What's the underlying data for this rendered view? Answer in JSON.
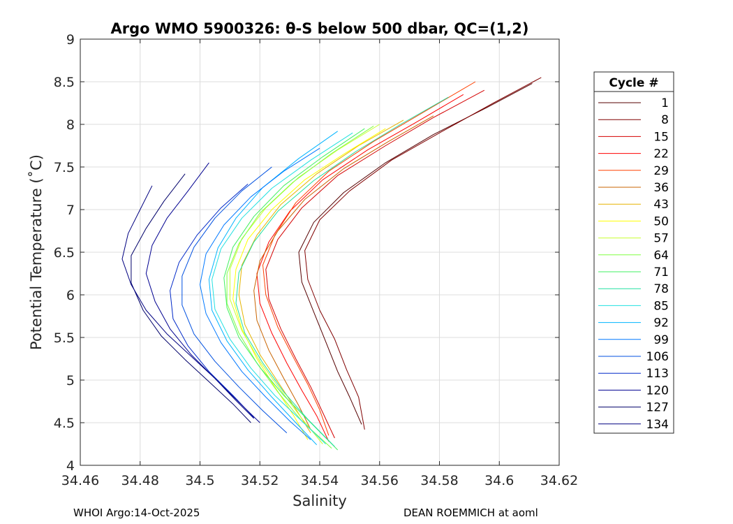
{
  "chart_data": {
    "type": "line",
    "title": "Argo WMO 5900326: θ-S below 500 dbar,  QC=(1,2)",
    "xlabel": "Salinity",
    "ylabel": "Potential Temperature (˚C)",
    "xlim": [
      34.46,
      34.62
    ],
    "ylim": [
      4,
      9
    ],
    "xticks": [
      "34.46",
      "34.48",
      "34.5",
      "34.52",
      "34.54",
      "34.56",
      "34.58",
      "34.6",
      "34.62"
    ],
    "yticks": [
      "4",
      "4.5",
      "5",
      "5.5",
      "6",
      "6.5",
      "7",
      "7.5",
      "8",
      "8.5",
      "9"
    ],
    "grid": true,
    "legend": {
      "title": "Cycle #",
      "placement": "right-outside",
      "entries": [
        "1",
        "8",
        "15",
        "22",
        "29",
        "36",
        "43",
        "50",
        "57",
        "64",
        "71",
        "78",
        "85",
        "92",
        "99",
        "106",
        "113",
        "120",
        "127",
        "134"
      ]
    },
    "colors": [
      "#550000",
      "#800000",
      "#d40000",
      "#ff0000",
      "#ff4000",
      "#c86400",
      "#e6b400",
      "#ffff00",
      "#c8ff30",
      "#80ff40",
      "#40f060",
      "#20e0a0",
      "#20e0e0",
      "#00b4ff",
      "#0078ff",
      "#0050e0",
      "#0028c8",
      "#000090",
      "#00006a",
      "#000080"
    ],
    "series": [
      {
        "name": "1",
        "points": [
          [
            34.611,
            8.48
          ],
          [
            34.596,
            8.2
          ],
          [
            34.578,
            7.88
          ],
          [
            34.562,
            7.55
          ],
          [
            34.548,
            7.2
          ],
          [
            34.538,
            6.85
          ],
          [
            34.533,
            6.5
          ],
          [
            34.534,
            6.15
          ],
          [
            34.538,
            5.8
          ],
          [
            34.542,
            5.45
          ],
          [
            34.546,
            5.1
          ],
          [
            34.55,
            4.8
          ],
          [
            34.554,
            4.48
          ]
        ]
      },
      {
        "name": "8",
        "points": [
          [
            34.614,
            8.55
          ],
          [
            34.598,
            8.25
          ],
          [
            34.581,
            7.92
          ],
          [
            34.564,
            7.58
          ],
          [
            34.55,
            7.22
          ],
          [
            34.54,
            6.88
          ],
          [
            34.535,
            6.52
          ],
          [
            34.536,
            6.18
          ],
          [
            34.54,
            5.82
          ],
          [
            34.545,
            5.48
          ],
          [
            34.549,
            5.12
          ],
          [
            34.553,
            4.8
          ],
          [
            34.555,
            4.42
          ]
        ]
      },
      {
        "name": "15",
        "points": [
          [
            34.595,
            8.4
          ],
          [
            34.578,
            8.08
          ],
          [
            34.562,
            7.75
          ],
          [
            34.546,
            7.4
          ],
          [
            34.534,
            7.02
          ],
          [
            34.526,
            6.65
          ],
          [
            34.522,
            6.3
          ],
          [
            34.523,
            5.95
          ],
          [
            34.527,
            5.6
          ],
          [
            34.532,
            5.25
          ],
          [
            34.537,
            4.92
          ],
          [
            34.541,
            4.62
          ],
          [
            34.545,
            4.32
          ]
        ]
      },
      {
        "name": "22",
        "points": [
          [
            34.588,
            8.35
          ],
          [
            34.572,
            8.02
          ],
          [
            34.556,
            7.7
          ],
          [
            34.541,
            7.35
          ],
          [
            34.53,
            6.98
          ],
          [
            34.523,
            6.62
          ],
          [
            34.519,
            6.25
          ],
          [
            34.52,
            5.9
          ],
          [
            34.524,
            5.55
          ],
          [
            34.529,
            5.2
          ],
          [
            34.534,
            4.88
          ],
          [
            34.539,
            4.58
          ],
          [
            34.543,
            4.28
          ]
        ]
      },
      {
        "name": "29",
        "points": [
          [
            34.592,
            8.5
          ],
          [
            34.575,
            8.15
          ],
          [
            34.558,
            7.8
          ],
          [
            34.543,
            7.45
          ],
          [
            34.532,
            7.08
          ],
          [
            34.525,
            6.7
          ],
          [
            34.521,
            6.35
          ],
          [
            34.522,
            6.0
          ],
          [
            34.526,
            5.62
          ],
          [
            34.531,
            5.28
          ],
          [
            34.536,
            4.95
          ],
          [
            34.54,
            4.65
          ],
          [
            34.543,
            4.35
          ]
        ]
      },
      {
        "name": "36",
        "points": [
          [
            34.578,
            8.1
          ],
          [
            34.563,
            7.8
          ],
          [
            34.548,
            7.48
          ],
          [
            34.535,
            7.12
          ],
          [
            34.526,
            6.75
          ],
          [
            34.52,
            6.4
          ],
          [
            34.518,
            6.05
          ],
          [
            34.519,
            5.7
          ],
          [
            34.523,
            5.35
          ],
          [
            34.528,
            5.02
          ],
          [
            34.533,
            4.7
          ],
          [
            34.537,
            4.42
          ]
        ]
      },
      {
        "name": "43",
        "points": [
          [
            34.568,
            8.05
          ],
          [
            34.553,
            7.75
          ],
          [
            34.539,
            7.42
          ],
          [
            34.527,
            7.06
          ],
          [
            34.519,
            6.7
          ],
          [
            34.514,
            6.35
          ],
          [
            34.513,
            6.0
          ],
          [
            34.515,
            5.65
          ],
          [
            34.52,
            5.3
          ],
          [
            34.526,
            4.98
          ],
          [
            34.532,
            4.66
          ],
          [
            34.537,
            4.38
          ]
        ]
      },
      {
        "name": "50",
        "points": [
          [
            34.562,
            7.95
          ],
          [
            34.548,
            7.65
          ],
          [
            34.535,
            7.35
          ],
          [
            34.524,
            7.0
          ],
          [
            34.516,
            6.65
          ],
          [
            34.512,
            6.3
          ],
          [
            34.511,
            5.95
          ],
          [
            34.514,
            5.6
          ],
          [
            34.519,
            5.25
          ],
          [
            34.525,
            4.92
          ],
          [
            34.531,
            4.6
          ],
          [
            34.536,
            4.3
          ]
        ]
      },
      {
        "name": "57",
        "points": [
          [
            34.56,
            8.0
          ],
          [
            34.546,
            7.7
          ],
          [
            34.533,
            7.38
          ],
          [
            34.522,
            7.02
          ],
          [
            34.514,
            6.66
          ],
          [
            34.51,
            6.3
          ],
          [
            34.51,
            5.95
          ],
          [
            34.514,
            5.58
          ],
          [
            34.52,
            5.22
          ],
          [
            34.527,
            4.88
          ],
          [
            34.534,
            4.55
          ],
          [
            34.541,
            4.25
          ]
        ]
      },
      {
        "name": "64",
        "points": [
          [
            34.558,
            7.98
          ],
          [
            34.544,
            7.66
          ],
          [
            34.531,
            7.32
          ],
          [
            34.52,
            6.96
          ],
          [
            34.513,
            6.6
          ],
          [
            34.509,
            6.25
          ],
          [
            34.509,
            5.9
          ],
          [
            34.513,
            5.55
          ],
          [
            34.519,
            5.2
          ],
          [
            34.526,
            4.86
          ],
          [
            34.534,
            4.52
          ],
          [
            34.544,
            4.2
          ]
        ]
      },
      {
        "name": "71",
        "points": [
          [
            34.555,
            7.95
          ],
          [
            34.541,
            7.62
          ],
          [
            34.528,
            7.28
          ],
          [
            34.518,
            6.92
          ],
          [
            34.511,
            6.56
          ],
          [
            34.508,
            6.2
          ],
          [
            34.509,
            5.85
          ],
          [
            34.513,
            5.5
          ],
          [
            34.52,
            5.15
          ],
          [
            34.528,
            4.82
          ],
          [
            34.537,
            4.5
          ],
          [
            34.546,
            4.18
          ]
        ]
      },
      {
        "name": "78",
        "points": [
          [
            34.583,
            8.32
          ],
          [
            34.567,
            8.0
          ],
          [
            34.552,
            7.68
          ],
          [
            34.538,
            7.34
          ],
          [
            34.526,
            6.98
          ],
          [
            34.518,
            6.62
          ],
          [
            34.513,
            6.26
          ],
          [
            34.512,
            5.9
          ],
          [
            34.515,
            5.55
          ],
          [
            34.521,
            5.2
          ],
          [
            34.528,
            4.86
          ],
          [
            34.536,
            4.54
          ],
          [
            34.545,
            4.22
          ]
        ]
      },
      {
        "name": "85",
        "points": [
          [
            34.551,
            7.9
          ],
          [
            34.537,
            7.58
          ],
          [
            34.524,
            7.25
          ],
          [
            34.514,
            6.9
          ],
          [
            34.507,
            6.54
          ],
          [
            34.504,
            6.18
          ],
          [
            34.505,
            5.83
          ],
          [
            34.51,
            5.48
          ],
          [
            34.517,
            5.14
          ],
          [
            34.525,
            4.82
          ],
          [
            34.534,
            4.52
          ],
          [
            34.542,
            4.25
          ]
        ]
      },
      {
        "name": "92",
        "points": [
          [
            34.546,
            7.92
          ],
          [
            34.533,
            7.6
          ],
          [
            34.521,
            7.26
          ],
          [
            34.512,
            6.9
          ],
          [
            34.506,
            6.55
          ],
          [
            34.503,
            6.18
          ],
          [
            34.504,
            5.82
          ],
          [
            34.509,
            5.46
          ],
          [
            34.516,
            5.12
          ],
          [
            34.524,
            4.8
          ],
          [
            34.532,
            4.5
          ],
          [
            34.539,
            4.24
          ]
        ]
      },
      {
        "name": "99",
        "points": [
          [
            34.54,
            7.72
          ],
          [
            34.528,
            7.45
          ],
          [
            34.517,
            7.15
          ],
          [
            34.508,
            6.82
          ],
          [
            34.502,
            6.48
          ],
          [
            34.5,
            6.12
          ],
          [
            34.502,
            5.78
          ],
          [
            34.507,
            5.44
          ],
          [
            34.514,
            5.1
          ],
          [
            34.522,
            4.8
          ],
          [
            34.53,
            4.52
          ],
          [
            34.537,
            4.3
          ]
        ]
      },
      {
        "name": "106",
        "points": [
          [
            34.524,
            7.5
          ],
          [
            34.514,
            7.22
          ],
          [
            34.505,
            6.9
          ],
          [
            34.498,
            6.56
          ],
          [
            34.494,
            6.22
          ],
          [
            34.494,
            5.88
          ],
          [
            34.498,
            5.54
          ],
          [
            34.505,
            5.22
          ],
          [
            34.513,
            4.92
          ],
          [
            34.521,
            4.64
          ],
          [
            34.529,
            4.38
          ]
        ]
      },
      {
        "name": "113",
        "points": [
          [
            34.516,
            7.3
          ],
          [
            34.507,
            7.02
          ],
          [
            34.499,
            6.7
          ],
          [
            34.493,
            6.38
          ],
          [
            34.49,
            6.05
          ],
          [
            34.491,
            5.72
          ],
          [
            34.496,
            5.4
          ],
          [
            34.503,
            5.1
          ],
          [
            34.511,
            4.82
          ],
          [
            34.518,
            4.56
          ]
        ]
      },
      {
        "name": "120",
        "points": [
          [
            34.503,
            7.55
          ],
          [
            34.496,
            7.22
          ],
          [
            34.489,
            6.9
          ],
          [
            34.484,
            6.58
          ],
          [
            34.482,
            6.25
          ],
          [
            34.485,
            5.92
          ],
          [
            34.49,
            5.6
          ],
          [
            34.497,
            5.3
          ],
          [
            34.505,
            5.02
          ],
          [
            34.513,
            4.74
          ],
          [
            34.52,
            4.5
          ]
        ]
      },
      {
        "name": "127",
        "points": [
          [
            34.495,
            7.42
          ],
          [
            34.488,
            7.1
          ],
          [
            34.482,
            6.78
          ],
          [
            34.477,
            6.46
          ],
          [
            34.477,
            6.14
          ],
          [
            34.481,
            5.82
          ],
          [
            34.487,
            5.52
          ],
          [
            34.495,
            5.24
          ],
          [
            34.503,
            4.98
          ],
          [
            34.511,
            4.72
          ],
          [
            34.517,
            4.5
          ]
        ]
      },
      {
        "name": "134",
        "points": [
          [
            34.484,
            7.28
          ],
          [
            34.48,
            7.0
          ],
          [
            34.476,
            6.72
          ],
          [
            34.474,
            6.42
          ],
          [
            34.477,
            6.12
          ],
          [
            34.482,
            5.82
          ],
          [
            34.489,
            5.54
          ],
          [
            34.497,
            5.28
          ],
          [
            34.505,
            5.02
          ],
          [
            34.512,
            4.76
          ],
          [
            34.518,
            4.55
          ]
        ]
      }
    ]
  },
  "footer": {
    "left": "WHOI Argo:14-Oct-2025",
    "right": "DEAN ROEMMICH at aoml"
  }
}
